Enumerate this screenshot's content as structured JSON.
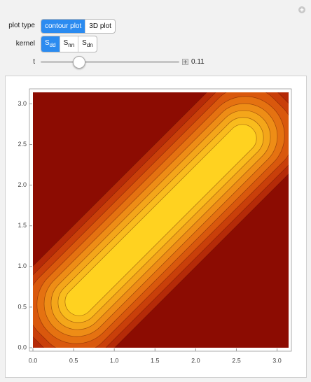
{
  "controls": {
    "plot_type": {
      "label": "plot type",
      "options": [
        "contour plot",
        "3D plot"
      ],
      "selected": 0
    },
    "kernel": {
      "label": "kernel",
      "options": [
        {
          "main": "S",
          "sub": "dd"
        },
        {
          "main": "S",
          "sub": "nn"
        },
        {
          "main": "S",
          "sub": "dn"
        }
      ],
      "selected": 0
    },
    "t": {
      "label": "t",
      "value": 0.11
    }
  },
  "chart_data": {
    "type": "contour",
    "xlim": [
      0,
      3.14159
    ],
    "ylim": [
      0,
      3.14159
    ],
    "xticks": [
      {
        "value": 0,
        "label": "0.0"
      },
      0.5,
      {
        "value": 1,
        "label": "1.0"
      },
      1.5,
      {
        "value": 2,
        "label": "2.0"
      },
      2.5,
      {
        "value": 3,
        "label": "3.0"
      }
    ],
    "yticks": [
      {
        "value": 0,
        "label": "0.0"
      },
      0.5,
      {
        "value": 1,
        "label": "1.0"
      },
      1.5,
      {
        "value": 2,
        "label": "2.0"
      },
      2.5,
      {
        "value": 3,
        "label": "3.0"
      }
    ],
    "background_color": "#8c0c02",
    "band_colors": [
      "#b52a08",
      "#c93f0a",
      "#d9580d",
      "#e57211",
      "#ee8d16",
      "#f4a61a",
      "#f9bc1d",
      "#ffd220"
    ]
  }
}
